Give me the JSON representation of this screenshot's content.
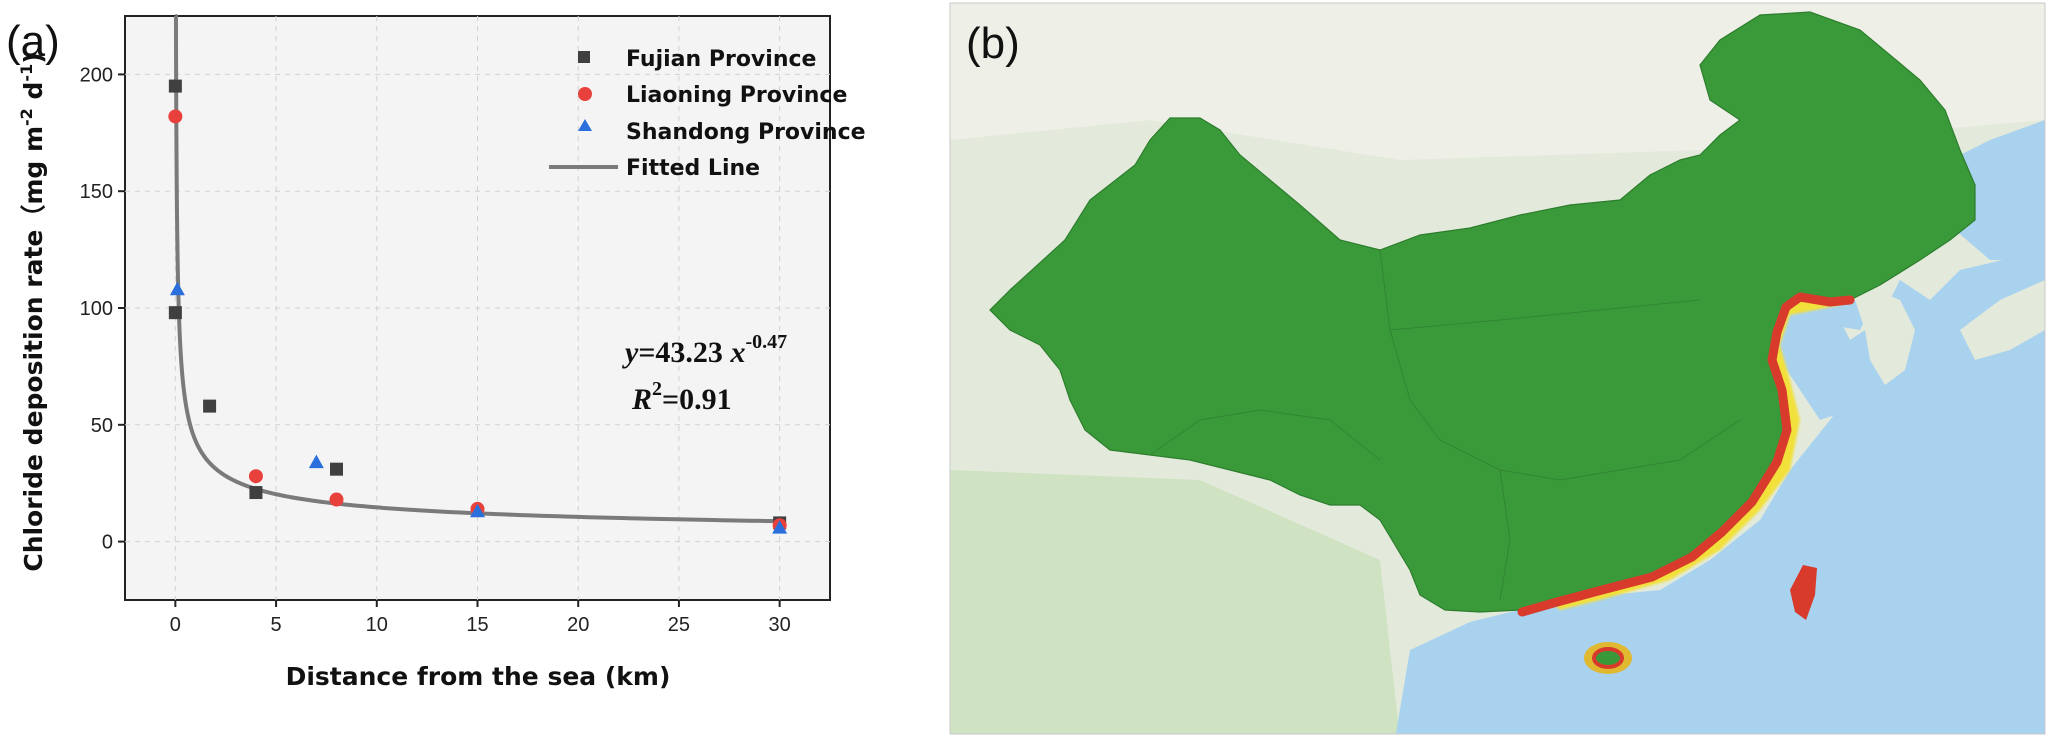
{
  "panel_a": {
    "label": "(a)"
  },
  "panel_b": {
    "label": "(b)"
  },
  "chart_data": {
    "type": "scatter",
    "xlabel": "Distance from the sea (km)",
    "ylabel": "Chloride deposition rate（mg m",
    "ylabel_sup1": "-2",
    "ylabel_mid": " d",
    "ylabel_sup2": "-1",
    "ylabel_end": ")",
    "xlim": [
      -2.5,
      32.5
    ],
    "ylim": [
      -25,
      225
    ],
    "xticks": [
      0,
      5,
      10,
      15,
      20,
      25,
      30
    ],
    "yticks": [
      0,
      50,
      100,
      150,
      200
    ],
    "grid": true,
    "legend_position": "top-right",
    "series": [
      {
        "name": "Fujian Province",
        "marker": "square",
        "color": "#404040",
        "x": [
          0,
          0,
          1.7,
          4,
          8,
          30
        ],
        "y": [
          195,
          98,
          58,
          21,
          31,
          8
        ]
      },
      {
        "name": "Liaoning Province",
        "marker": "circle",
        "color": "#e8413c",
        "x": [
          0,
          4,
          8,
          15,
          30
        ],
        "y": [
          182,
          28,
          18,
          14,
          7
        ]
      },
      {
        "name": "Shandong Province",
        "marker": "triangle",
        "color": "#2a6fdb",
        "x": [
          0.1,
          7,
          15,
          30
        ],
        "y": [
          108,
          34,
          13,
          6
        ]
      }
    ],
    "fit": {
      "name": "Fitted Line",
      "color": "#7a7a7a",
      "a": 43.23,
      "b": -0.47
    },
    "equation": {
      "y_part": "y",
      "coef": "=43.23 ",
      "x_part": "x",
      "exp": "-0.47",
      "r_part": "R",
      "r_exp": "2",
      "r_val": "=0.91"
    }
  },
  "colors": {
    "land_green": "#3a9a3a",
    "land_background": "#e3eadb",
    "sea": "#a9d2ef",
    "coast_red": "#d83a2c",
    "coast_yellow": "#f2e03a"
  }
}
